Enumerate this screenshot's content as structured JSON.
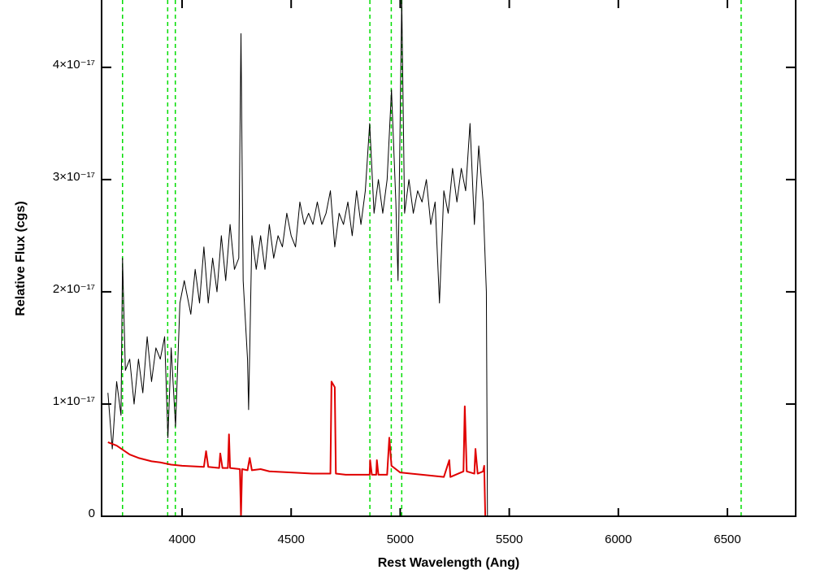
{
  "chart_data": {
    "type": "line",
    "xlabel": "Rest Wavelength (Ang)",
    "ylabel": "Relative Flux (cgs)",
    "xlim": [
      3631,
      6813
    ],
    "ylim": [
      0,
      4.6e-17
    ],
    "xticks": [
      4000,
      4500,
      5000,
      5500,
      6000,
      6500
    ],
    "yticks": [
      0,
      {
        "value": 1e-17,
        "label": "1×10⁻¹⁷"
      },
      {
        "value": 2e-17,
        "label": "2×10⁻¹⁷"
      },
      {
        "value": 3e-17,
        "label": "3×10⁻¹⁷"
      },
      {
        "value": 4e-17,
        "label": "4×10⁻¹⁷"
      }
    ],
    "reference_lines": {
      "color": "#00dd00",
      "x": [
        3727,
        3934,
        3969,
        4861,
        4959,
        5007,
        6563
      ]
    },
    "series": [
      {
        "color": "#000000",
        "width": 1,
        "x": [
          3660,
          3680,
          3700,
          3720,
          3727,
          3740,
          3760,
          3780,
          3800,
          3820,
          3840,
          3860,
          3880,
          3900,
          3920,
          3935,
          3950,
          3970,
          3990,
          4010,
          4040,
          4060,
          4080,
          4100,
          4120,
          4140,
          4160,
          4180,
          4200,
          4220,
          4240,
          4260,
          4270,
          4280,
          4300,
          4305,
          4320,
          4340,
          4360,
          4380,
          4400,
          4420,
          4440,
          4460,
          4480,
          4500,
          4520,
          4540,
          4560,
          4580,
          4600,
          4620,
          4640,
          4660,
          4680,
          4700,
          4720,
          4740,
          4760,
          4780,
          4800,
          4820,
          4840,
          4860,
          4880,
          4900,
          4920,
          4940,
          4960,
          4980,
          4990,
          5007,
          5020,
          5040,
          5060,
          5080,
          5100,
          5120,
          5140,
          5160,
          5180,
          5200,
          5220,
          5240,
          5260,
          5280,
          5300,
          5320,
          5340,
          5360,
          5380,
          5395,
          5400
        ],
        "values": [
          1.1e-17,
          6e-18,
          1.2e-17,
          9e-18,
          2.3e-17,
          1.3e-17,
          1.4e-17,
          1e-17,
          1.4e-17,
          1.1e-17,
          1.6e-17,
          1.2e-17,
          1.5e-17,
          1.4e-17,
          1.6e-17,
          7e-18,
          1.5e-17,
          8e-18,
          1.9e-17,
          2.1e-17,
          1.8e-17,
          2.2e-17,
          1.9e-17,
          2.4e-17,
          1.9e-17,
          2.3e-17,
          2e-17,
          2.5e-17,
          2.1e-17,
          2.6e-17,
          2.2e-17,
          2.3e-17,
          4.3e-17,
          2.1e-17,
          1.4e-17,
          9.5e-18,
          2.5e-17,
          2.2e-17,
          2.5e-17,
          2.2e-17,
          2.6e-17,
          2.3e-17,
          2.5e-17,
          2.4e-17,
          2.7e-17,
          2.5e-17,
          2.4e-17,
          2.8e-17,
          2.6e-17,
          2.7e-17,
          2.6e-17,
          2.8e-17,
          2.6e-17,
          2.7e-17,
          2.9e-17,
          2.4e-17,
          2.7e-17,
          2.6e-17,
          2.8e-17,
          2.5e-17,
          2.9e-17,
          2.6e-17,
          2.9e-17,
          3.5e-17,
          2.7e-17,
          3e-17,
          2.7e-17,
          3e-17,
          3.8e-17,
          2.8e-17,
          2.1e-17,
          4.6e-17,
          2.7e-17,
          3e-17,
          2.7e-17,
          2.9e-17,
          2.8e-17,
          3e-17,
          2.6e-17,
          2.8e-17,
          1.9e-17,
          2.9e-17,
          2.7e-17,
          3.1e-17,
          2.8e-17,
          3.1e-17,
          2.9e-17,
          3.5e-17,
          2.6e-17,
          3.3e-17,
          2.8e-17,
          2e-17,
          0
        ]
      },
      {
        "color": "#e00000",
        "width": 2,
        "x": [
          3660,
          3700,
          3760,
          3800,
          3860,
          3900,
          3950,
          4000,
          4100,
          4110,
          4120,
          4170,
          4175,
          4185,
          4210,
          4215,
          4220,
          4265,
          4270,
          4275,
          4300,
          4310,
          4320,
          4360,
          4400,
          4500,
          4600,
          4680,
          4685,
          4700,
          4705,
          4750,
          4860,
          4862,
          4870,
          4890,
          4893,
          4900,
          4940,
          4950,
          4960,
          5000,
          5100,
          5200,
          5225,
          5230,
          5290,
          5296,
          5305,
          5340,
          5345,
          5355,
          5380,
          5385,
          5390,
          6813
        ],
        "values": [
          6.6e-18,
          6.3e-18,
          5.5e-18,
          5.2e-18,
          4.9e-18,
          4.8e-18,
          4.6e-18,
          4.5e-18,
          4.4e-18,
          5.8e-18,
          4.4e-18,
          4.3e-18,
          5.6e-18,
          4.3e-18,
          4.3e-18,
          7.3e-18,
          4.3e-18,
          4.2e-18,
          0,
          4.2e-18,
          4.1e-18,
          5.2e-18,
          4.1e-18,
          4.2e-18,
          4e-18,
          3.9e-18,
          3.8e-18,
          3.8e-18,
          1.2e-17,
          1.15e-17,
          3.8e-18,
          3.7e-18,
          3.7e-18,
          5e-18,
          3.7e-18,
          3.7e-18,
          5e-18,
          3.7e-18,
          3.7e-18,
          7e-18,
          4.5e-18,
          3.9e-18,
          3.7e-18,
          3.5e-18,
          5e-18,
          3.5e-18,
          4e-18,
          9.8e-18,
          4e-18,
          3.8e-18,
          6e-18,
          3.8e-18,
          4e-18,
          4.5e-18,
          0,
          0
        ]
      }
    ]
  }
}
